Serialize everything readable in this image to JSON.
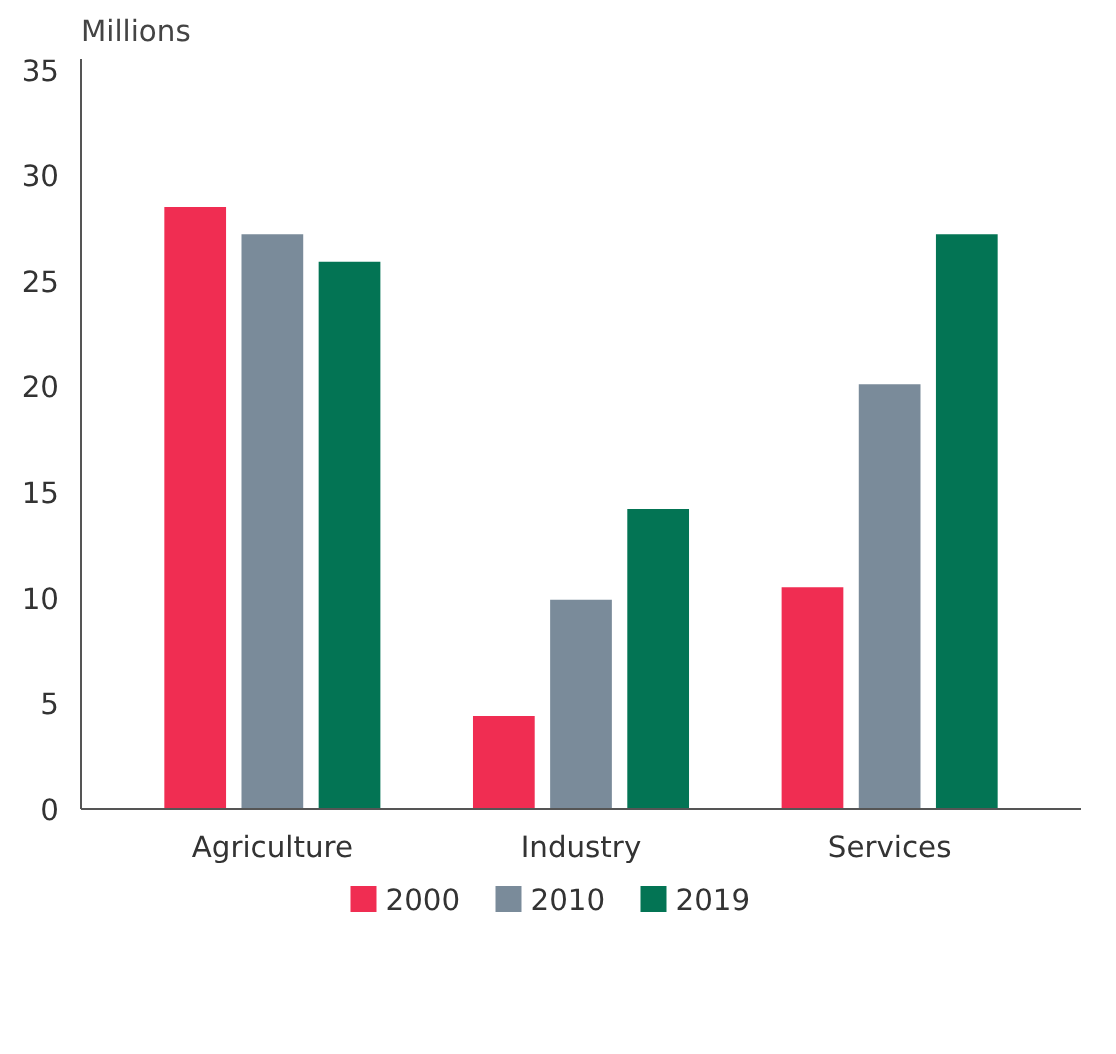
{
  "chart_data": {
    "type": "bar",
    "ylabel": "Millions",
    "categories": [
      "Agriculture",
      "Industry",
      "Services"
    ],
    "series": [
      {
        "name": "2000",
        "color": "#f02d52",
        "values": [
          28.5,
          4.4,
          10.5
        ]
      },
      {
        "name": "2010",
        "color": "#7a8b9a",
        "values": [
          27.2,
          9.9,
          20.1
        ]
      },
      {
        "name": "2019",
        "color": "#037454",
        "values": [
          25.9,
          14.2,
          27.2
        ]
      }
    ],
    "ylim": [
      0,
      35.5
    ],
    "yticks": [
      0,
      5,
      10,
      15,
      20,
      25,
      30,
      35
    ],
    "grid": false,
    "legend": "bottom"
  }
}
